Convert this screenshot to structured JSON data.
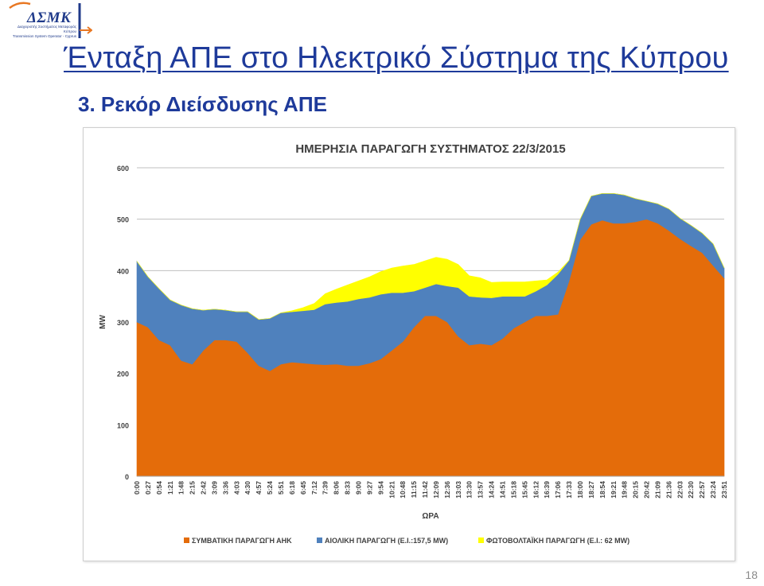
{
  "logo": {
    "name": "ΔΣΜΚ",
    "line1": "Διαχειριστής Συστήματος Μεταφοράς",
    "line2": "Κύπρου",
    "line3": "Transmission System Operator - Cyprus",
    "colors": {
      "primary": "#1f3a8a",
      "accent": "#e87722"
    }
  },
  "slide": {
    "title": "Ένταξη ΑΠΕ στο Ηλεκτρικό Σύστημα της Κύπρου",
    "subtitle": "3.  Ρεκόρ Διείσδυσης ΑΠΕ",
    "page_number": "18"
  },
  "chart_data": {
    "type": "area",
    "stacked": true,
    "title": "ΗΜΕΡΗΣΙΑ ΠΑΡΑΓΩΓΗ ΣΥΣΤΗΜΑΤΟΣ 22/3/2015",
    "xlabel": "ΩΡΑ",
    "ylabel": "MW",
    "ylim": [
      0,
      600
    ],
    "yticks": [
      0,
      100,
      200,
      300,
      400,
      500,
      600
    ],
    "grid": true,
    "legend_position": "bottom",
    "x": [
      "0:00",
      "0:27",
      "0:54",
      "1:21",
      "1:48",
      "2:15",
      "2:42",
      "3:09",
      "3:36",
      "4:03",
      "4:30",
      "4:57",
      "5:24",
      "5:51",
      "6:18",
      "6:45",
      "7:12",
      "7:39",
      "8:06",
      "8:33",
      "9:00",
      "9:27",
      "9:54",
      "10:21",
      "10:48",
      "11:15",
      "11:42",
      "12:09",
      "12:36",
      "13:03",
      "13:30",
      "13:57",
      "14:24",
      "14:51",
      "15:18",
      "15:45",
      "16:12",
      "16:39",
      "17:06",
      "17:33",
      "18:00",
      "18:27",
      "18:54",
      "19:21",
      "19:48",
      "20:15",
      "20:42",
      "21:09",
      "21:36",
      "22:03",
      "22:30",
      "22:57",
      "23:24",
      "23:51"
    ],
    "series": [
      {
        "name": "ΣΥΜΒΑΤΙΚΗ ΠΑΡΑΓΩΓΗ ΑΗΚ",
        "color": "#e46c0a",
        "values": [
          300,
          290,
          265,
          255,
          225,
          218,
          245,
          265,
          265,
          262,
          240,
          215,
          205,
          218,
          222,
          220,
          218,
          217,
          218,
          215,
          215,
          220,
          228,
          245,
          262,
          290,
          312,
          312,
          300,
          272,
          255,
          258,
          255,
          268,
          288,
          300,
          312,
          312,
          315,
          380,
          460,
          490,
          498,
          492,
          492,
          495,
          500,
          492,
          478,
          462,
          448,
          435,
          410,
          385
        ]
      },
      {
        "name": "ΑΙΟΛΙΚΗ ΠΑΡΑΓΩΓΗ (Ε.Ι.:157,5 MW)",
        "color": "#4f81bd",
        "values": [
          118,
          98,
          100,
          88,
          108,
          108,
          78,
          60,
          58,
          58,
          80,
          90,
          102,
          100,
          98,
          102,
          106,
          118,
          120,
          125,
          130,
          128,
          126,
          112,
          95,
          70,
          55,
          62,
          70,
          95,
          95,
          90,
          92,
          82,
          62,
          50,
          48,
          60,
          78,
          40,
          40,
          55,
          52,
          58,
          55,
          45,
          35,
          38,
          42,
          40,
          40,
          38,
          42,
          20
        ]
      },
      {
        "name": "ΦΩΤΟΒΟΛΤΑΪΚΗ ΠΑΡΑΓΩΓΗ (Ε.Ι.: 62 MW)",
        "color": "#ffff00",
        "values": [
          0,
          0,
          0,
          0,
          0,
          0,
          0,
          0,
          0,
          0,
          0,
          0,
          0,
          0,
          2,
          6,
          12,
          20,
          26,
          32,
          35,
          40,
          44,
          48,
          52,
          52,
          52,
          52,
          52,
          45,
          40,
          38,
          30,
          28,
          28,
          28,
          20,
          10,
          4,
          0,
          0,
          0,
          0,
          0,
          0,
          0,
          0,
          0,
          0,
          0,
          0,
          0,
          0,
          0
        ]
      }
    ]
  }
}
